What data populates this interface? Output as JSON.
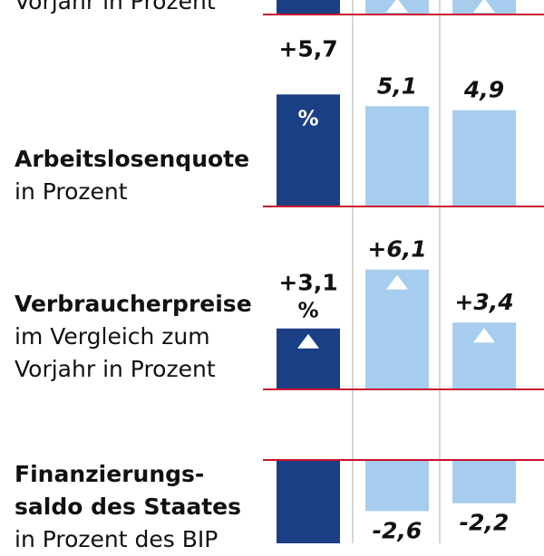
{
  "colors": {
    "highlight_bar": "#1a3f85",
    "forecast_bar": "#a6cdee",
    "zero_line": "#c8102e",
    "separator": "#c9c9c9",
    "arrow": "#ffffff"
  },
  "chart_data": [
    {
      "type": "bar",
      "title": "",
      "subtitle": "Vorjahr in Prozent",
      "values": [
        null,
        null,
        null
      ],
      "up_arrows": [
        false,
        true,
        true
      ]
    },
    {
      "type": "bar",
      "title": "Arbeitslosenquote",
      "subtitle": "in Prozent",
      "values": [
        5.7,
        5.1,
        4.9
      ],
      "labels": [
        "+5,7",
        "5,1",
        "4,9"
      ],
      "unit": "%",
      "up_arrows": [
        false,
        false,
        false
      ]
    },
    {
      "type": "bar",
      "title": "Verbraucherpreise",
      "subtitle": "im Vergleich zum Vorjahr in Prozent",
      "subtitle_lines": [
        "im Vergleich zum",
        "Vorjahr in Prozent"
      ],
      "values": [
        3.1,
        6.1,
        3.4
      ],
      "labels": [
        "+3,1",
        "+6,1",
        "+3,4"
      ],
      "unit": "%",
      "up_arrows": [
        true,
        true,
        true
      ]
    },
    {
      "type": "bar",
      "title": "Finanzierungs- saldo des Staates",
      "title_lines": [
        "Finanzierungs-",
        "saldo des Staates"
      ],
      "subtitle": "in Prozent des BIP",
      "values": [
        null,
        -2.6,
        -2.2
      ],
      "labels": [
        "",
        "-2,6",
        "-2,2"
      ],
      "up_arrows": [
        false,
        false,
        false
      ]
    }
  ]
}
